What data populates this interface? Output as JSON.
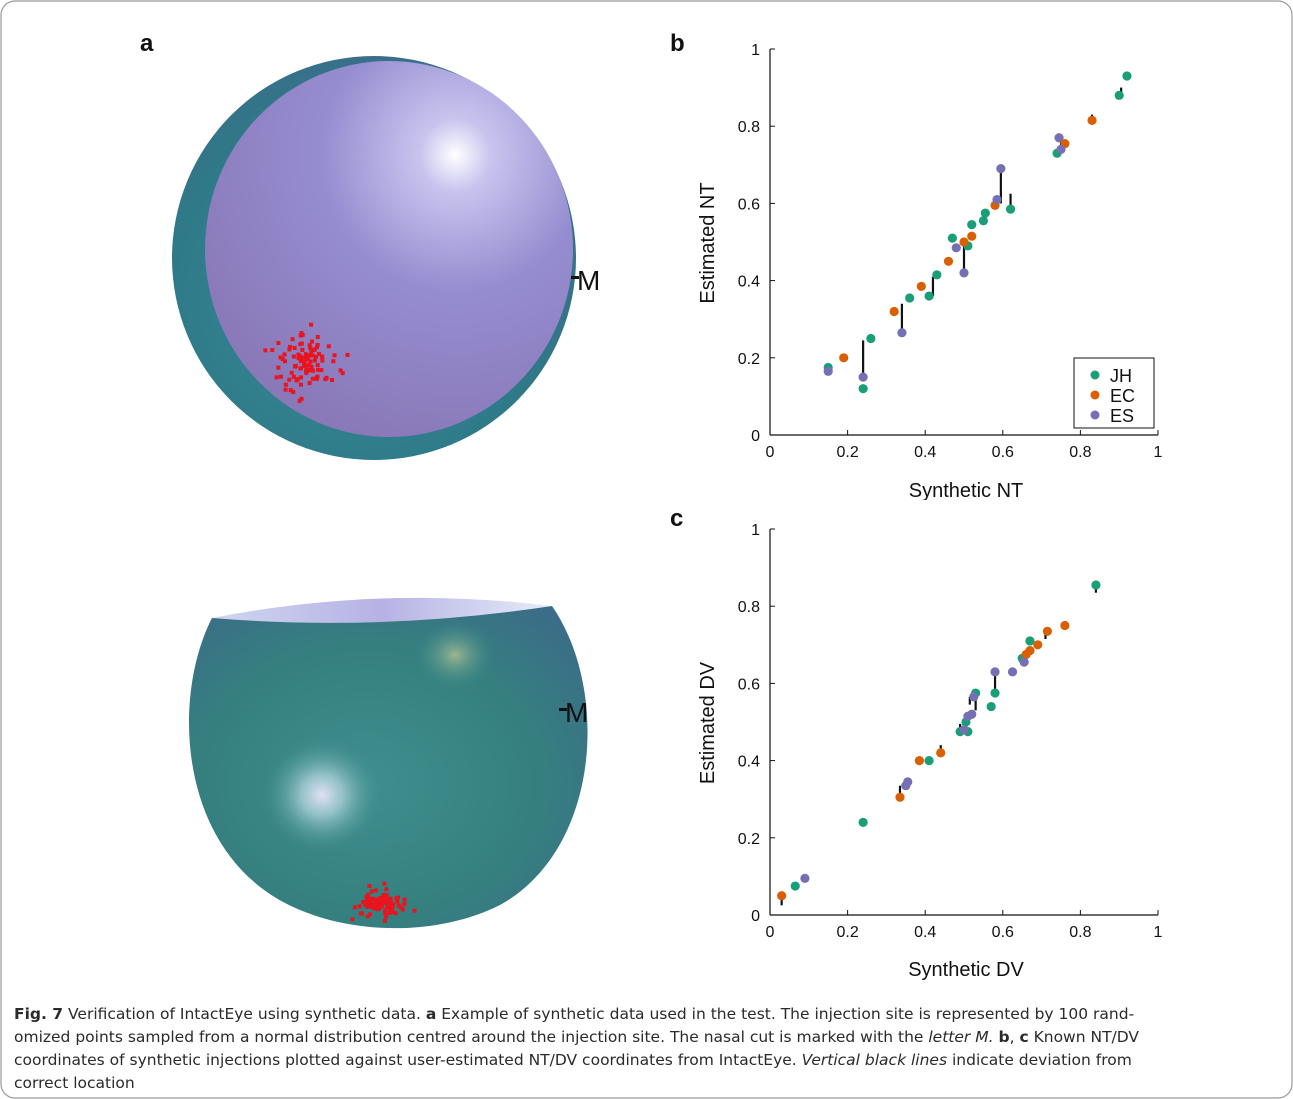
{
  "panels": {
    "a": "a",
    "b": "b",
    "c": "c"
  },
  "marker_label": "M",
  "colors": {
    "JH": "#1a9e77",
    "EC": "#d95f02",
    "ES": "#7570b3",
    "injection": "#e8141e",
    "eye_outer": "#2f6f88",
    "eye_inner": "#8e86c8"
  },
  "chart_data": [
    {
      "type": "scatter",
      "panel": "b",
      "xlabel": "Synthetic NT",
      "ylabel": "Estimated NT",
      "xlim": [
        0,
        1
      ],
      "ylim": [
        0,
        1
      ],
      "xticks": [
        "0",
        "0.2",
        "0.4",
        "0.6",
        "0.8",
        "1"
      ],
      "yticks": [
        "0",
        "0.2",
        "0.4",
        "0.6",
        "0.8",
        "1"
      ],
      "legend_position": "bottom-right",
      "series": [
        {
          "name": "JH",
          "points": [
            [
              0.15,
              0.175
            ],
            [
              0.24,
              0.12
            ],
            [
              0.26,
              0.25
            ],
            [
              0.36,
              0.355
            ],
            [
              0.41,
              0.36
            ],
            [
              0.43,
              0.415
            ],
            [
              0.47,
              0.51
            ],
            [
              0.51,
              0.49
            ],
            [
              0.52,
              0.545
            ],
            [
              0.55,
              0.555
            ],
            [
              0.555,
              0.575
            ],
            [
              0.62,
              0.585
            ],
            [
              0.74,
              0.73
            ],
            [
              0.9,
              0.88
            ],
            [
              0.92,
              0.93
            ]
          ]
        },
        {
          "name": "EC",
          "points": [
            [
              0.19,
              0.2
            ],
            [
              0.32,
              0.32
            ],
            [
              0.39,
              0.385
            ],
            [
              0.46,
              0.45
            ],
            [
              0.5,
              0.5
            ],
            [
              0.52,
              0.515
            ],
            [
              0.58,
              0.595
            ],
            [
              0.76,
              0.755
            ],
            [
              0.83,
              0.815
            ]
          ]
        },
        {
          "name": "ES",
          "points": [
            [
              0.15,
              0.165
            ],
            [
              0.24,
              0.15
            ],
            [
              0.34,
              0.265
            ],
            [
              0.48,
              0.485
            ],
            [
              0.5,
              0.42
            ],
            [
              0.585,
              0.61
            ],
            [
              0.595,
              0.69
            ],
            [
              0.745,
              0.77
            ],
            [
              0.75,
              0.74
            ]
          ]
        }
      ],
      "deviations": [
        [
          0.24,
          0.15,
          0.245
        ],
        [
          0.34,
          0.265,
          0.34
        ],
        [
          0.42,
          0.36,
          0.41
        ],
        [
          0.5,
          0.42,
          0.505
        ],
        [
          0.595,
          0.6,
          0.69
        ],
        [
          0.62,
          0.585,
          0.625
        ],
        [
          0.905,
          0.88,
          0.9
        ],
        [
          0.83,
          0.815,
          0.83
        ],
        [
          0.75,
          0.73,
          0.77
        ]
      ]
    },
    {
      "type": "scatter",
      "panel": "c",
      "xlabel": "Synthetic DV",
      "ylabel": "Estimated DV",
      "xlim": [
        0,
        1
      ],
      "ylim": [
        0,
        1
      ],
      "xticks": [
        "0",
        "0.2",
        "0.4",
        "0.6",
        "0.8",
        "1"
      ],
      "yticks": [
        "0",
        "0.2",
        "0.4",
        "0.6",
        "0.8",
        "1"
      ],
      "series": [
        {
          "name": "JH",
          "points": [
            [
              0.065,
              0.075
            ],
            [
              0.24,
              0.24
            ],
            [
              0.41,
              0.4
            ],
            [
              0.49,
              0.475
            ],
            [
              0.505,
              0.5
            ],
            [
              0.51,
              0.475
            ],
            [
              0.53,
              0.575
            ],
            [
              0.57,
              0.54
            ],
            [
              0.58,
              0.575
            ],
            [
              0.65,
              0.665
            ],
            [
              0.67,
              0.71
            ],
            [
              0.84,
              0.855
            ]
          ]
        },
        {
          "name": "EC",
          "points": [
            [
              0.03,
              0.05
            ],
            [
              0.335,
              0.305
            ],
            [
              0.385,
              0.4
            ],
            [
              0.44,
              0.42
            ],
            [
              0.66,
              0.675
            ],
            [
              0.67,
              0.685
            ],
            [
              0.69,
              0.7
            ],
            [
              0.715,
              0.735
            ],
            [
              0.76,
              0.75
            ]
          ]
        },
        {
          "name": "ES",
          "points": [
            [
              0.09,
              0.095
            ],
            [
              0.35,
              0.335
            ],
            [
              0.355,
              0.345
            ],
            [
              0.5,
              0.48
            ],
            [
              0.51,
              0.515
            ],
            [
              0.52,
              0.52
            ],
            [
              0.525,
              0.565
            ],
            [
              0.58,
              0.63
            ],
            [
              0.625,
              0.63
            ],
            [
              0.655,
              0.655
            ]
          ]
        }
      ],
      "deviations": [
        [
          0.03,
          0.025,
          0.05
        ],
        [
          0.335,
          0.305,
          0.335
        ],
        [
          0.44,
          0.42,
          0.44
        ],
        [
          0.53,
          0.53,
          0.575
        ],
        [
          0.58,
          0.575,
          0.63
        ],
        [
          0.515,
          0.545,
          0.565
        ],
        [
          0.84,
          0.835,
          0.855
        ],
        [
          0.71,
          0.715,
          0.735
        ],
        [
          0.49,
          0.475,
          0.495
        ]
      ]
    }
  ],
  "caption": {
    "fig_label": "Fig. 7",
    "t1": "Verification of IntactEye using synthetic data.",
    "a": "a",
    "t2": "Example of synthetic data used in the test. The injection site is represented by 100 rand-",
    "t3": "omized points sampled from a normal distribution centred around the injection site. The nasal cut is marked with the",
    "letter_m": "letter M.",
    "b": "b",
    "sep": ",",
    "c": "c",
    "t4": "Known NT/DV",
    "t5": "coordinates of synthetic injections plotted against user-estimated NT/DV coordinates from IntactEye.",
    "vertical": "Vertical black lines",
    "t6": "indicate deviation from",
    "t7": "correct location"
  }
}
